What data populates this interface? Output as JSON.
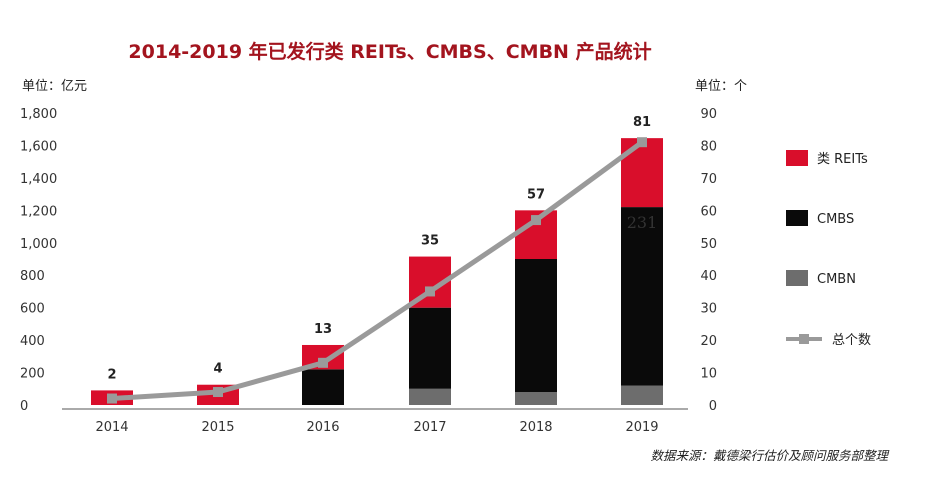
{
  "chart_data": {
    "type": "bar",
    "title": "2014-2019 年已发行类 REITs、CMBS、CMBN 产品统计",
    "left_axis_unit": "单位：亿元",
    "right_axis_unit": "单位：个",
    "categories": [
      "2014",
      "2015",
      "2016",
      "2017",
      "2018",
      "2019"
    ],
    "ylim_left": [
      0,
      1800
    ],
    "yticks_left": [
      "0",
      "200",
      "400",
      "600",
      "800",
      "1,000",
      "1,200",
      "1,400",
      "1,600",
      "1,800"
    ],
    "ylim_right": [
      0,
      90
    ],
    "yticks_right": [
      "0",
      "10",
      "20",
      "30",
      "40",
      "50",
      "60",
      "70",
      "80",
      "90"
    ],
    "series": [
      {
        "name": "CMBN",
        "kind": "bar",
        "axis": "left",
        "color": "#6d6d6d",
        "values": [
          0,
          0,
          0,
          100,
          80,
          120
        ]
      },
      {
        "name": "CMBS",
        "kind": "bar",
        "axis": "left",
        "color": "#0a0a0a",
        "values": [
          0,
          0,
          220,
          500,
          820,
          1100
        ]
      },
      {
        "name": "类 REITs",
        "kind": "bar",
        "axis": "left",
        "color": "#d90e2b",
        "values": [
          90,
          125,
          150,
          315,
          300,
          425
        ]
      },
      {
        "name": "总个数",
        "kind": "line",
        "axis": "right",
        "color": "#9a9a9a",
        "values": [
          2,
          4,
          13,
          35,
          57,
          81
        ]
      }
    ],
    "data_labels": [
      "2",
      "4",
      "13",
      "35",
      "57",
      "81"
    ],
    "legend_position": "right",
    "grid": false,
    "stray_text": "231",
    "source": "数据来源：戴德梁行估价及顾问服务部整理"
  }
}
